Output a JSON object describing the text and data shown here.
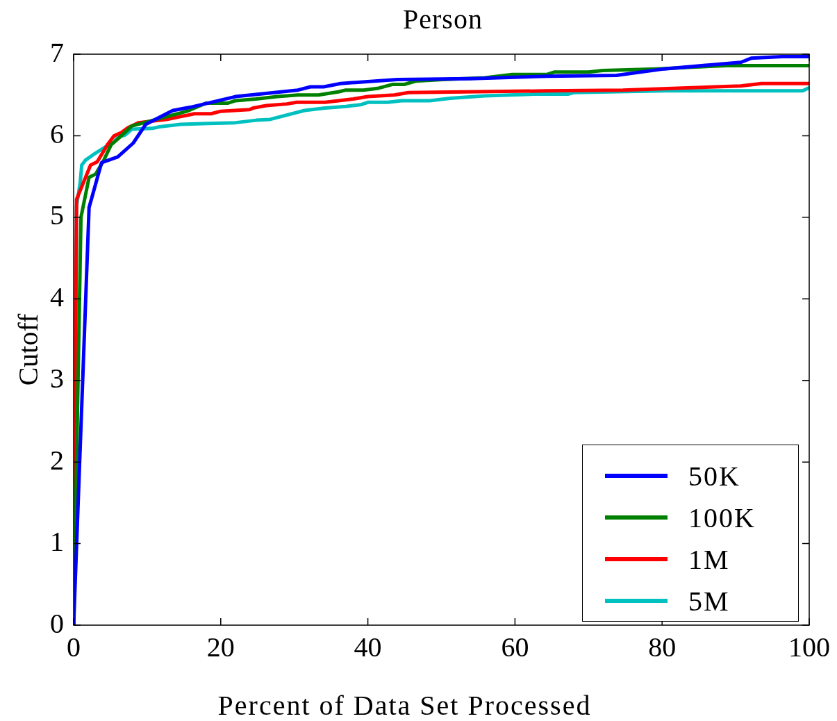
{
  "chart_data": {
    "type": "line",
    "title": "Person",
    "xlabel": "Percent of Data Set Processed",
    "ylabel": "Cutoff",
    "xlim": [
      0,
      100
    ],
    "xticks": [
      0,
      20,
      40,
      60,
      80,
      100
    ],
    "ylim": [
      0,
      7
    ],
    "yticks": [
      0,
      1,
      2,
      3,
      4,
      5,
      6,
      7
    ],
    "grid": false,
    "legend": "bottom right",
    "marker": "none",
    "line_style": "solid",
    "series": [
      {
        "name": "50K",
        "color": "#0000ff",
        "x": [
          0,
          2.1,
          3.8,
          6.0,
          8.1,
          9.8,
          13.5,
          15.9,
          22,
          30.5,
          32.2,
          34,
          36.3,
          44,
          54,
          64.3,
          73.8,
          80.3,
          90.7,
          92.1,
          96.3,
          100
        ],
        "values": [
          0,
          5.12,
          5.67,
          5.74,
          5.91,
          6.14,
          6.31,
          6.35,
          6.48,
          6.56,
          6.6,
          6.6,
          6.64,
          6.69,
          6.7,
          6.73,
          6.74,
          6.82,
          6.9,
          6.95,
          6.97,
          6.97
        ]
      },
      {
        "name": "100K",
        "color": "#008000",
        "x": [
          0,
          1.0,
          2.1,
          3.0,
          4.1,
          5.1,
          6.0,
          7.9,
          15.4,
          18,
          21,
          22,
          24.8,
          27.7,
          30.5,
          33.3,
          36.1,
          37,
          39.4,
          41.3,
          43.4,
          45,
          46.5,
          50.2,
          55.9,
          59.6,
          64.3,
          65.3,
          70,
          71.9,
          79.4,
          84,
          88.8,
          100
        ],
        "values": [
          0,
          5.0,
          5.49,
          5.53,
          5.7,
          5.89,
          5.96,
          6.12,
          6.3,
          6.4,
          6.4,
          6.43,
          6.45,
          6.48,
          6.5,
          6.5,
          6.54,
          6.56,
          6.56,
          6.58,
          6.63,
          6.63,
          6.67,
          6.69,
          6.71,
          6.75,
          6.75,
          6.78,
          6.78,
          6.8,
          6.82,
          6.84,
          6.86,
          6.86
        ]
      },
      {
        "name": "1M",
        "color": "#ff0000",
        "x": [
          0,
          0.4,
          2.3,
          3.2,
          4.6,
          5.5,
          6.5,
          7.4,
          8.8,
          12.6,
          15.4,
          16.4,
          18.7,
          20,
          23.9,
          24.4,
          26.2,
          29,
          30.3,
          34.2,
          38,
          40,
          43.6,
          45.5,
          55,
          64.3,
          74.7,
          84.1,
          90.7,
          93.5,
          100
        ],
        "values": [
          0,
          5.22,
          5.64,
          5.68,
          5.89,
          6.0,
          6.04,
          6.1,
          6.16,
          6.2,
          6.25,
          6.27,
          6.27,
          6.3,
          6.32,
          6.34,
          6.37,
          6.39,
          6.41,
          6.41,
          6.45,
          6.48,
          6.5,
          6.53,
          6.54,
          6.55,
          6.56,
          6.59,
          6.61,
          6.64,
          6.64
        ]
      },
      {
        "name": "5M",
        "color": "#00c0c0",
        "x": [
          0,
          0.4,
          0.9,
          1.1,
          1.6,
          2.7,
          4.6,
          5.5,
          6.0,
          7.0,
          7.9,
          10.7,
          11.7,
          14.5,
          18.3,
          22,
          24.8,
          26.7,
          31.4,
          34.2,
          37,
          39,
          40,
          42.7,
          44.6,
          48.4,
          51.2,
          55.9,
          62.5,
          67.2,
          68.1,
          80.3,
          93.5,
          99.1,
          100
        ],
        "values": [
          0,
          5.14,
          5.43,
          5.64,
          5.7,
          5.77,
          5.88,
          5.92,
          5.98,
          6.01,
          6.08,
          6.09,
          6.11,
          6.14,
          6.15,
          6.16,
          6.19,
          6.2,
          6.31,
          6.34,
          6.36,
          6.38,
          6.41,
          6.41,
          6.43,
          6.43,
          6.46,
          6.49,
          6.51,
          6.51,
          6.53,
          6.55,
          6.55,
          6.55,
          6.59
        ]
      }
    ]
  }
}
